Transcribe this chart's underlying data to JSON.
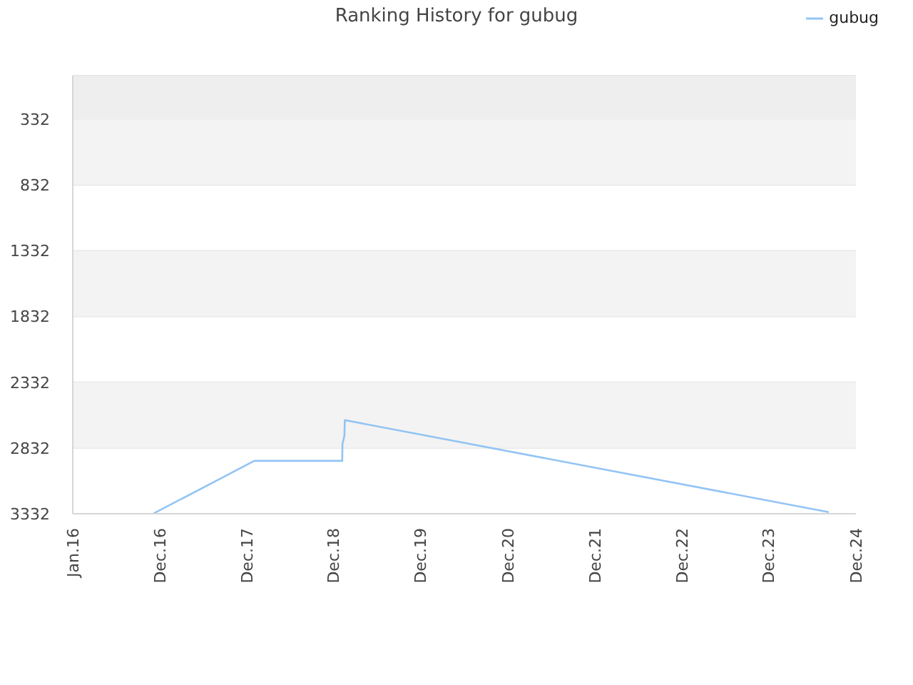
{
  "chart_data": {
    "type": "line",
    "title": "Ranking History for gubug",
    "x": [
      "2016-12-05",
      "2018-02-01",
      "2019-02-05",
      "2019-02-06",
      "2019-02-14",
      "2019-02-16",
      "2024-09-08"
    ],
    "series": [
      {
        "name": "gubug",
        "color": "#92c4f4",
        "values": [
          3330,
          2930,
          2930,
          2800,
          2740,
          2620,
          3320
        ]
      }
    ],
    "xlim": [
      "2016-01-01",
      "2024-12-31"
    ],
    "xticks": [
      {
        "value": "2016-01-01",
        "label": "Jan.16"
      },
      {
        "value": "2016-12-31",
        "label": "Dec.16"
      },
      {
        "value": "2017-12-31",
        "label": "Dec.17"
      },
      {
        "value": "2018-12-31",
        "label": "Dec.18"
      },
      {
        "value": "2019-12-31",
        "label": "Dec.19"
      },
      {
        "value": "2020-12-31",
        "label": "Dec.20"
      },
      {
        "value": "2021-12-31",
        "label": "Dec.21"
      },
      {
        "value": "2022-12-31",
        "label": "Dec.22"
      },
      {
        "value": "2023-12-31",
        "label": "Dec.23"
      },
      {
        "value": "2024-12-31",
        "label": "Dec.24"
      }
    ],
    "ylim": [
      3332,
      0
    ],
    "yticks": [
      332,
      832,
      1332,
      1832,
      2332,
      2832,
      3332
    ],
    "bands": [
      {
        "axis": "y",
        "from": 0,
        "to": 332,
        "color": "#eeeeee"
      },
      {
        "axis": "y",
        "from": 332,
        "to": 832,
        "color": "#f3f3f3"
      },
      {
        "axis": "y",
        "from": 1332,
        "to": 1832,
        "color": "#f3f3f3"
      },
      {
        "axis": "y",
        "from": 2332,
        "to": 2832,
        "color": "#f3f3f3"
      }
    ],
    "grid": "y",
    "legend": "top right",
    "marker": "none",
    "line_style": "solid"
  }
}
